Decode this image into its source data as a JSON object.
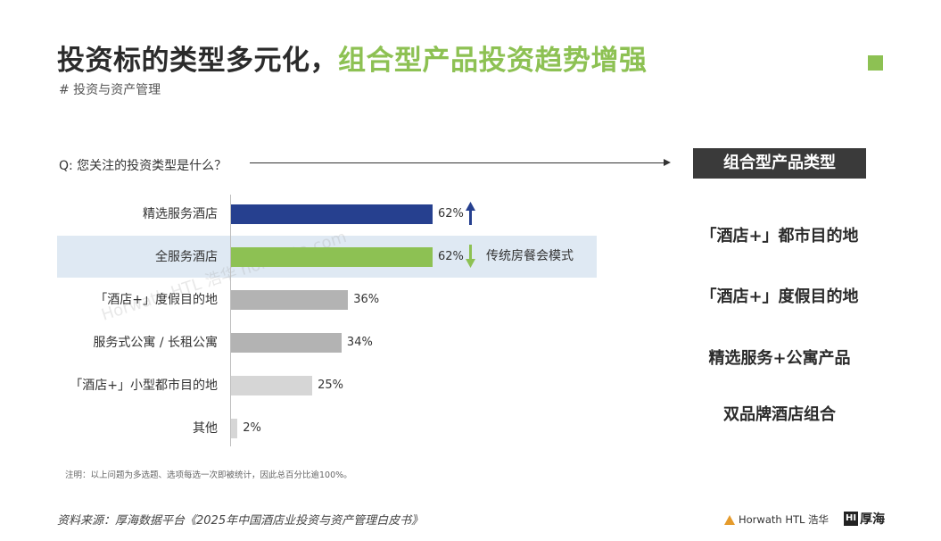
{
  "header": {
    "title_main": "投资标的类型多元化，",
    "title_accent": "组合型产品投资趋势增强",
    "subtitle": "# 投资与资产管理"
  },
  "colors": {
    "accent_green": "#8dc153",
    "bar_blue": "#26408f",
    "bar_green": "#8dc153",
    "bar_gray_dark": "#b3b3b3",
    "bar_gray_light": "#d6d6d6",
    "highlight_band": "#dfe9f3",
    "header_box": "#3a3a3a"
  },
  "question": "Q: 您关注的投资类型是什么？",
  "chart_data": {
    "type": "bar",
    "orientation": "horizontal",
    "categories": [
      "精选服务酒店",
      "全服务酒店",
      "「酒店+」度假目的地",
      "服务式公寓 / 长租公寓",
      "「酒店+」小型都市目的地",
      "其他"
    ],
    "values": [
      62,
      62,
      36,
      34,
      25,
      2
    ],
    "value_labels": [
      "62%",
      "62%",
      "36%",
      "34%",
      "25%",
      "2%"
    ],
    "unit": "%",
    "xlim": [
      0,
      100
    ],
    "trend": [
      "up",
      "down",
      null,
      null,
      null,
      null
    ],
    "highlighted_category": "全服务酒店",
    "annotation": "传统房餐会模式",
    "grid": false
  },
  "footnote": "注明：以上问题为多选题、选项每选一次即被统计，因此总百分比逾100%。",
  "source": "资料来源：厚海数据平台《2025年中国酒店业投资与资产管理白皮书》",
  "right_panel": {
    "header": "组合型产品类型",
    "items": [
      "「酒店+」都市目的地",
      "「酒店+」度假目的地",
      "精选服务+公寓产品",
      "双品牌酒店组合"
    ]
  },
  "watermark": "Horwath HTL 浩华   hohidata.com",
  "logos": {
    "horwath": "Horwath HTL 浩华",
    "hohai_mark": "HI",
    "hohai": "厚海"
  }
}
